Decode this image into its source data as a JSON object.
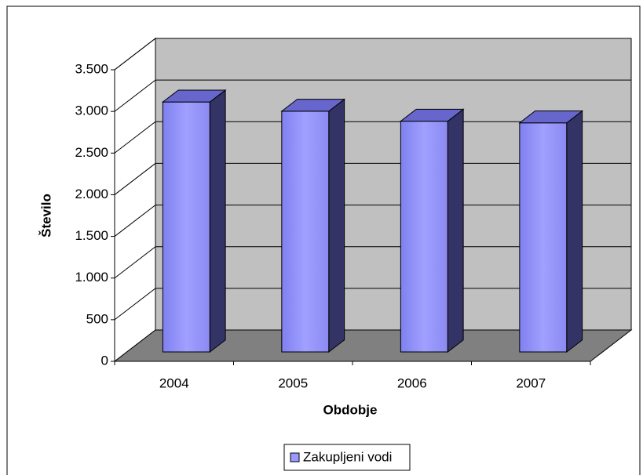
{
  "chart_data": {
    "type": "bar3d",
    "categories": [
      "2004",
      "2005",
      "2006",
      "2007"
    ],
    "series": [
      {
        "name": "Zakupljeni vodi",
        "color": "#9999ff",
        "values": [
          3000,
          2890,
          2770,
          2750
        ]
      }
    ],
    "xlabel": "Obdobje",
    "ylabel": "Število",
    "ylim": [
      0,
      3500
    ],
    "yticks": [
      0,
      500,
      {
        "value": 1000,
        "label": "1.000"
      },
      {
        "value": 1500,
        "label": "1.500"
      },
      {
        "value": 2000,
        "label": "2.000"
      },
      {
        "value": 2500,
        "label": "2.500"
      },
      {
        "value": 3000,
        "label": "3.000"
      },
      {
        "value": 3500,
        "label": "3.500"
      }
    ],
    "grid": true,
    "legend": "bottom"
  }
}
